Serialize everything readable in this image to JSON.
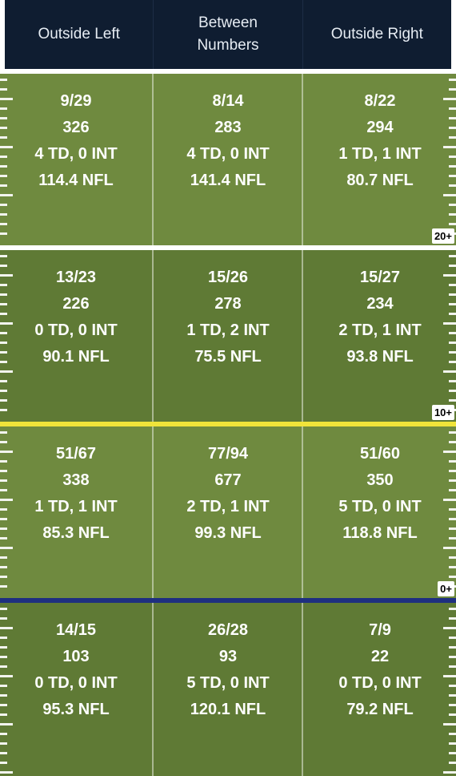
{
  "header": {
    "columns": [
      "Outside Left",
      "Between\nNumbers",
      "Outside Right"
    ]
  },
  "colors": {
    "header_bg": "#0f1d31",
    "field_light": "#6f8a3f",
    "field_dark": "#5f7a35",
    "line_yellow": "#f0e43a",
    "line_blue": "#1e2f80"
  },
  "zones": [
    {
      "badge": "20+",
      "cells": [
        {
          "comp": "9/29",
          "yards": "326",
          "tdint": "4 TD, 0 INT",
          "rating": "114.4 NFL"
        },
        {
          "comp": "8/14",
          "yards": "283",
          "tdint": "4 TD, 0 INT",
          "rating": "141.4 NFL"
        },
        {
          "comp": "8/22",
          "yards": "294",
          "tdint": "1 TD, 1 INT",
          "rating": "80.7 NFL"
        }
      ]
    },
    {
      "badge": "10+",
      "cells": [
        {
          "comp": "13/23",
          "yards": "226",
          "tdint": "0 TD, 0 INT",
          "rating": "90.1 NFL"
        },
        {
          "comp": "15/26",
          "yards": "278",
          "tdint": "1 TD, 2 INT",
          "rating": "75.5 NFL"
        },
        {
          "comp": "15/27",
          "yards": "234",
          "tdint": "2 TD, 1 INT",
          "rating": "93.8 NFL"
        }
      ]
    },
    {
      "badge": "0+",
      "cells": [
        {
          "comp": "51/67",
          "yards": "338",
          "tdint": "1 TD, 1 INT",
          "rating": "85.3 NFL"
        },
        {
          "comp": "77/94",
          "yards": "677",
          "tdint": "2 TD, 1 INT",
          "rating": "99.3 NFL"
        },
        {
          "comp": "51/60",
          "yards": "350",
          "tdint": "5 TD, 0 INT",
          "rating": "118.8 NFL"
        }
      ]
    },
    {
      "badge": "",
      "cells": [
        {
          "comp": "14/15",
          "yards": "103",
          "tdint": "0 TD, 0 INT",
          "rating": "95.3 NFL"
        },
        {
          "comp": "26/28",
          "yards": "93",
          "tdint": "5 TD, 0 INT",
          "rating": "120.1 NFL"
        },
        {
          "comp": "7/9",
          "yards": "22",
          "tdint": "0 TD, 0 INT",
          "rating": "79.2 NFL"
        }
      ]
    }
  ]
}
